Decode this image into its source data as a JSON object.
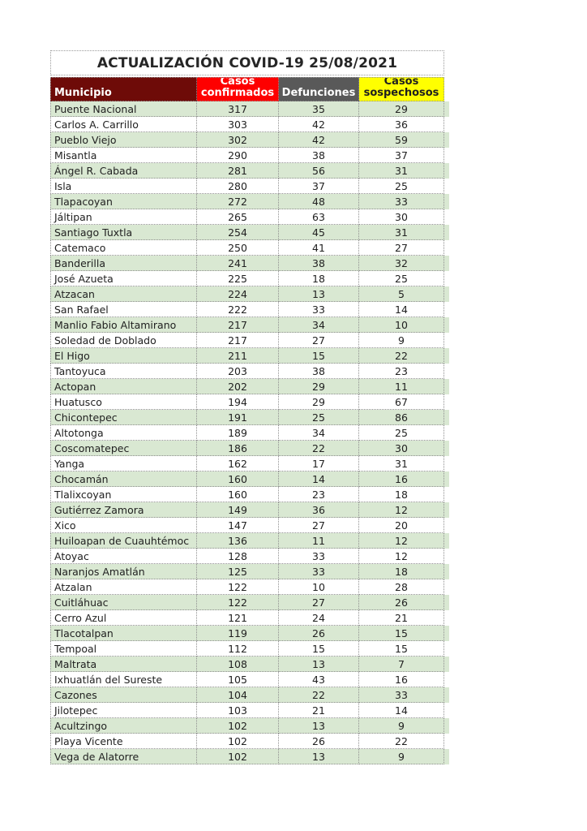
{
  "page": {
    "title": "ACTUALIZACIÓN COVID-19 25/08/2021"
  },
  "colors": {
    "municipio_header_bg": "#6e0b08",
    "confirmados_header_bg": "#fe0000",
    "defunciones_header_bg": "#595959",
    "sospechosos_header_bg": "#ffff00",
    "stripe_green": "#d9e8d2",
    "grid_border": "#8f8f8f",
    "text": "#212121"
  },
  "chart_data": {
    "type": "table",
    "title": "ACTUALIZACIÓN COVID-19 25/08/2021",
    "columns": [
      "Municipio",
      "Casos confirmados",
      "Defunciones",
      "Casos sospechosos"
    ],
    "rows": [
      [
        "Puente Nacional",
        317,
        35,
        29
      ],
      [
        "Carlos A. Carrillo",
        303,
        42,
        36
      ],
      [
        "Pueblo Viejo",
        302,
        42,
        59
      ],
      [
        "Misantla",
        290,
        38,
        37
      ],
      [
        "Ángel R. Cabada",
        281,
        56,
        31
      ],
      [
        "Isla",
        280,
        37,
        25
      ],
      [
        "Tlapacoyan",
        272,
        48,
        33
      ],
      [
        "Jáltipan",
        265,
        63,
        30
      ],
      [
        "Santiago Tuxtla",
        254,
        45,
        31
      ],
      [
        "Catemaco",
        250,
        41,
        27
      ],
      [
        "Banderilla",
        241,
        38,
        32
      ],
      [
        "José Azueta",
        225,
        18,
        25
      ],
      [
        "Atzacan",
        224,
        13,
        5
      ],
      [
        "San Rafael",
        222,
        33,
        14
      ],
      [
        "Manlio Fabio Altamirano",
        217,
        34,
        10
      ],
      [
        "Soledad de Doblado",
        217,
        27,
        9
      ],
      [
        "El Higo",
        211,
        15,
        22
      ],
      [
        "Tantoyuca",
        203,
        38,
        23
      ],
      [
        "Actopan",
        202,
        29,
        11
      ],
      [
        "Huatusco",
        194,
        29,
        67
      ],
      [
        "Chicontepec",
        191,
        25,
        86
      ],
      [
        "Altotonga",
        189,
        34,
        25
      ],
      [
        "Coscomatepec",
        186,
        22,
        30
      ],
      [
        "Yanga",
        162,
        17,
        31
      ],
      [
        "Chocamán",
        160,
        14,
        16
      ],
      [
        "Tlalixcoyan",
        160,
        23,
        18
      ],
      [
        "Gutiérrez Zamora",
        149,
        36,
        12
      ],
      [
        "Xico",
        147,
        27,
        20
      ],
      [
        "Huiloapan de Cuauhtémoc",
        136,
        11,
        12
      ],
      [
        "Atoyac",
        128,
        33,
        12
      ],
      [
        "Naranjos Amatlán",
        125,
        33,
        18
      ],
      [
        "Atzalan",
        122,
        10,
        28
      ],
      [
        "Cuitláhuac",
        122,
        27,
        26
      ],
      [
        "Cerro Azul",
        121,
        24,
        21
      ],
      [
        "Tlacotalpan",
        119,
        26,
        15
      ],
      [
        "Tempoal",
        112,
        15,
        15
      ],
      [
        "Maltrata",
        108,
        13,
        7
      ],
      [
        "Ixhuatlán del Sureste",
        105,
        43,
        16
      ],
      [
        "Cazones",
        104,
        22,
        33
      ],
      [
        "Jilotepec",
        103,
        21,
        14
      ],
      [
        "Acultzingo",
        102,
        13,
        9
      ],
      [
        "Playa Vicente",
        102,
        26,
        22
      ],
      [
        "Vega de Alatorre",
        102,
        13,
        9
      ]
    ]
  }
}
